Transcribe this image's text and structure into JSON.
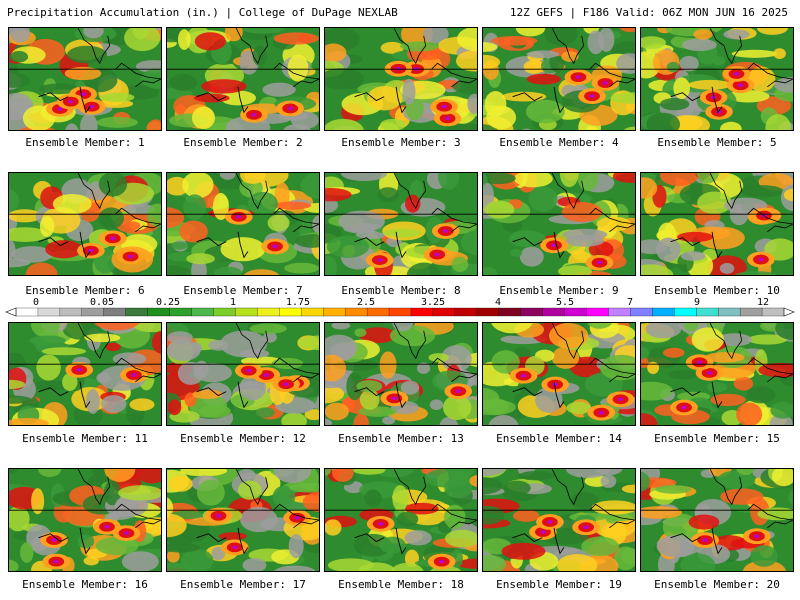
{
  "header": {
    "title_left": "Precipitation Accumulation (in.) | College of DuPage NEXLAB",
    "title_right": "12Z GEFS | F186 Valid: 06Z MON JUN 16 2025"
  },
  "members": [
    {
      "label": "Ensemble Member: 1"
    },
    {
      "label": "Ensemble Member: 2"
    },
    {
      "label": "Ensemble Member: 3"
    },
    {
      "label": "Ensemble Member: 4"
    },
    {
      "label": "Ensemble Member: 5"
    },
    {
      "label": "Ensemble Member: 6"
    },
    {
      "label": "Ensemble Member: 7"
    },
    {
      "label": "Ensemble Member: 8"
    },
    {
      "label": "Ensemble Member: 9"
    },
    {
      "label": "Ensemble Member: 10"
    },
    {
      "label": "Ensemble Member: 11"
    },
    {
      "label": "Ensemble Member: 12"
    },
    {
      "label": "Ensemble Member: 13"
    },
    {
      "label": "Ensemble Member: 14"
    },
    {
      "label": "Ensemble Member: 15"
    },
    {
      "label": "Ensemble Member: 16"
    },
    {
      "label": "Ensemble Member: 17"
    },
    {
      "label": "Ensemble Member: 18"
    },
    {
      "label": "Ensemble Member: 19"
    },
    {
      "label": "Ensemble Member: 20"
    }
  ],
  "colorbar": {
    "unit": "in.",
    "labels": [
      "0",
      "0.05",
      "0.25",
      "1",
      "1.75",
      "2.5",
      "3.25",
      "4",
      "5.5",
      "7",
      "9",
      "12"
    ],
    "colors": [
      "#ffffff",
      "#d9d9d9",
      "#bdbdbd",
      "#9e9e9e",
      "#7f7f7f",
      "#3a7a3a",
      "#1f8f1f",
      "#2ea02e",
      "#4cb84c",
      "#7ccd2c",
      "#b4e01c",
      "#eef01c",
      "#ffff00",
      "#ffd700",
      "#ffb000",
      "#ff8c00",
      "#ff6a00",
      "#ff4500",
      "#ff0000",
      "#e00000",
      "#c00000",
      "#a00000",
      "#800020",
      "#900060",
      "#b000a0",
      "#d000d0",
      "#ff00ff",
      "#c080ff",
      "#8080ff",
      "#00b0ff",
      "#00ffff",
      "#40e0d0",
      "#80c0c0",
      "#a0a0a0",
      "#c0c0c0"
    ]
  },
  "colors": {
    "border": "#000000",
    "background": "#ffffff"
  }
}
